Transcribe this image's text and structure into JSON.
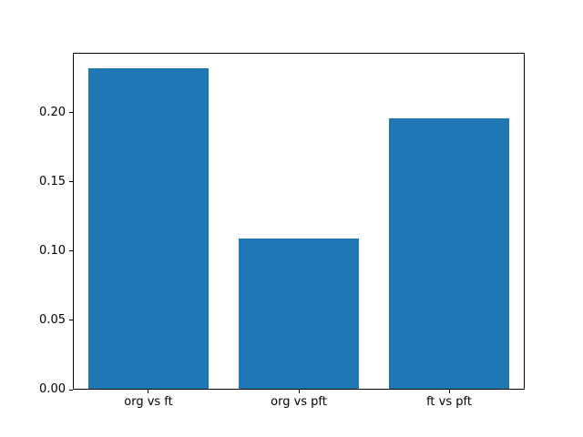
{
  "chart_data": {
    "type": "bar",
    "title": "",
    "xlabel": "",
    "ylabel": "",
    "categories": [
      "org vs ft",
      "org vs pft",
      "ft vs pft"
    ],
    "values": [
      0.232,
      0.109,
      0.196
    ],
    "yticks": [
      {
        "value": 0.0,
        "label": "0.00"
      },
      {
        "value": 0.05,
        "label": "0.05"
      },
      {
        "value": 0.1,
        "label": "0.10"
      },
      {
        "value": 0.15,
        "label": "0.15"
      },
      {
        "value": 0.2,
        "label": "0.20"
      }
    ],
    "ylim": [
      0,
      0.2434
    ],
    "bar_width_fraction": 0.8,
    "grid": false,
    "legend": null,
    "colors": {
      "bar": "#1f77b4",
      "frame": "#000000",
      "background": "#ffffff",
      "text": "#000000"
    }
  }
}
